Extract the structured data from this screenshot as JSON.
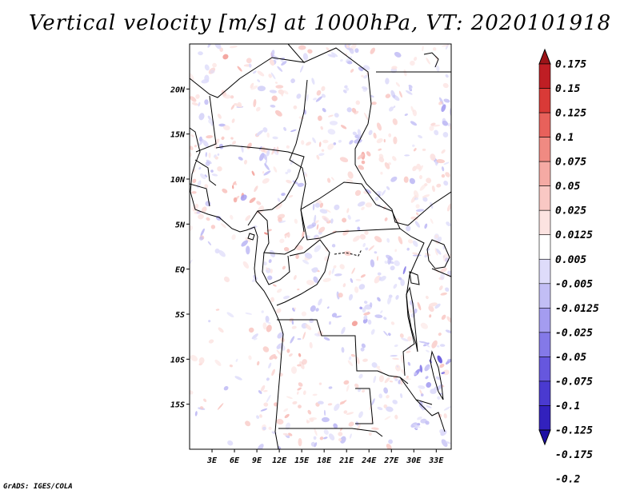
{
  "title": "Vertical velocity [m/s] at 1000hPa, VT: 2020101918",
  "credit": "GrADS: IGES/COLA",
  "map": {
    "lon_range": [
      0,
      35
    ],
    "lat_range": [
      -20,
      25
    ],
    "lat_ticks": [
      {
        "lat": 20,
        "label": "20N"
      },
      {
        "lat": 15,
        "label": "15N"
      },
      {
        "lat": 10,
        "label": "10N"
      },
      {
        "lat": 5,
        "label": "5N"
      },
      {
        "lat": 0,
        "label": "EQ"
      },
      {
        "lat": -5,
        "label": "5S"
      },
      {
        "lat": -10,
        "label": "10S"
      },
      {
        "lat": -15,
        "label": "15S"
      }
    ],
    "lon_ticks": [
      {
        "lon": 3,
        "label": "3E"
      },
      {
        "lon": 6,
        "label": "6E"
      },
      {
        "lon": 9,
        "label": "9E"
      },
      {
        "lon": 12,
        "label": "12E"
      },
      {
        "lon": 15,
        "label": "15E"
      },
      {
        "lon": 18,
        "label": "18E"
      },
      {
        "lon": 21,
        "label": "21E"
      },
      {
        "lon": 24,
        "label": "24E"
      },
      {
        "lon": 27,
        "label": "27E"
      },
      {
        "lon": 30,
        "label": "30E"
      },
      {
        "lon": 33,
        "label": "33E"
      }
    ]
  },
  "legend": {
    "colors": [
      "#9c1418",
      "#bf1e24",
      "#d93a37",
      "#e8615b",
      "#f08a82",
      "#f5aaa4",
      "#f9c8c4",
      "#fce3e1",
      "#ffffff",
      "#dedcfa",
      "#c2bef5",
      "#a49cf0",
      "#8479e8",
      "#6657de",
      "#4a3ad0",
      "#3221bd",
      "#1d0fa3"
    ],
    "labels": [
      "0.175",
      "0.15",
      "0.125",
      "0.1",
      "0.075",
      "0.05",
      "0.025",
      "0.0125",
      "0.005",
      "-0.005",
      "-0.0125",
      "-0.025",
      "-0.05",
      "-0.075",
      "-0.1",
      "-0.125",
      "-0.175",
      "-0.2"
    ]
  }
}
